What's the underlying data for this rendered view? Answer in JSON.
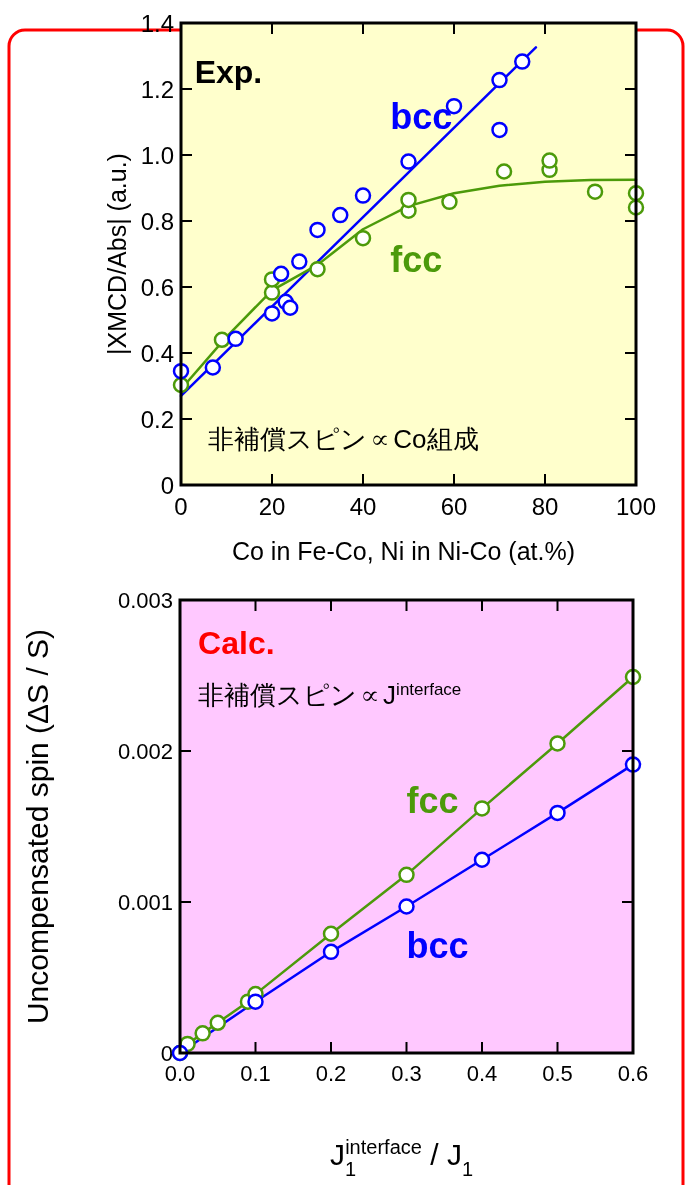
{
  "chart_data": [
    {
      "type": "scatter",
      "annotations": [
        "Exp.",
        "非補償スピン∝Co組成"
      ],
      "xlabel": "Co in Fe-Co, Ni in Ni-Co (at.%)",
      "ylabel": "|XMCD/Abs| (a.u.)",
      "xlim": [
        0,
        100
      ],
      "ylim": [
        0,
        1.4
      ],
      "xticks": [
        0,
        20,
        40,
        60,
        80,
        100
      ],
      "yticks": [
        0,
        0.2,
        0.4,
        0.6,
        0.8,
        {
          "value": 1,
          "label": "1.0"
        },
        1.2,
        1.4
      ],
      "marker": "circle",
      "series": [
        {
          "type": "line",
          "marker": "none",
          "color": "#0000ff",
          "x": [
            0,
            78
          ],
          "values": [
            0.27,
            1.326
          ]
        },
        {
          "type": "line",
          "marker": "none",
          "color": "#4c9a0a",
          "x": [
            0,
            10,
            20,
            30,
            40,
            50,
            60,
            70,
            80,
            90,
            100
          ],
          "values": [
            0.29,
            0.449,
            0.59,
            0.667,
            0.775,
            0.845,
            0.884,
            0.907,
            0.919,
            0.924,
            0.925
          ]
        },
        {
          "name": "bcc",
          "color": "#0000ff",
          "x": [
            0,
            7,
            12,
            20,
            22,
            23,
            24,
            26,
            30,
            35,
            40,
            50,
            60,
            70,
            70,
            75
          ],
          "values": [
            0.345,
            0.356,
            0.443,
            0.52,
            0.64,
            0.555,
            0.537,
            0.677,
            0.773,
            0.818,
            0.877,
            0.98,
            1.148,
            1.227,
            1.076,
            1.283
          ]
        },
        {
          "name": "fcc",
          "color": "#4c9a0a",
          "x": [
            0,
            9,
            20,
            20,
            30,
            40,
            50,
            50,
            59,
            71,
            81,
            81,
            91,
            100,
            100
          ],
          "values": [
            0.303,
            0.44,
            0.583,
            0.623,
            0.654,
            0.748,
            0.831,
            0.864,
            0.858,
            0.95,
            0.955,
            0.983,
            0.889,
            0.884,
            0.841
          ]
        }
      ]
    },
    {
      "type": "line",
      "annotations": [
        "Calc.",
        "非補償スピン∝J$^{interface}$"
      ],
      "xlabel": "J$_{1}$$^{interface}$ / J$_{1}$",
      "ylabel": "Uncompensated spin (ΔS / S)",
      "xlim": [
        0,
        0.6
      ],
      "ylim": [
        0,
        0.003
      ],
      "xticks": [
        {
          "value": 0,
          "label": "0.0"
        },
        0.1,
        0.2,
        0.3,
        0.4,
        0.5,
        0.6
      ],
      "yticks": [
        0,
        0.001,
        0.002,
        0.003
      ],
      "marker": "circle",
      "line_style": "solid",
      "series": [
        {
          "name": "bcc",
          "color": "#0000ff",
          "x": [
            0,
            0.1,
            0.2,
            0.3,
            0.4,
            0.5,
            0.6
          ],
          "values": [
            0,
            0.00034,
            0.00067,
            0.00097,
            0.00128,
            0.00159,
            0.00191
          ]
        },
        {
          "name": "fcc",
          "color": "#4c9a0a",
          "x": [
            0,
            0.01,
            0.03,
            0.05,
            0.09,
            0.1,
            0.2,
            0.3,
            0.4,
            0.5,
            0.6
          ],
          "values": [
            0,
            6e-05,
            0.00013,
            0.0002,
            0.00034,
            0.00039,
            0.00079,
            0.00118,
            0.00162,
            0.00205,
            0.00249
          ]
        }
      ]
    }
  ]
}
